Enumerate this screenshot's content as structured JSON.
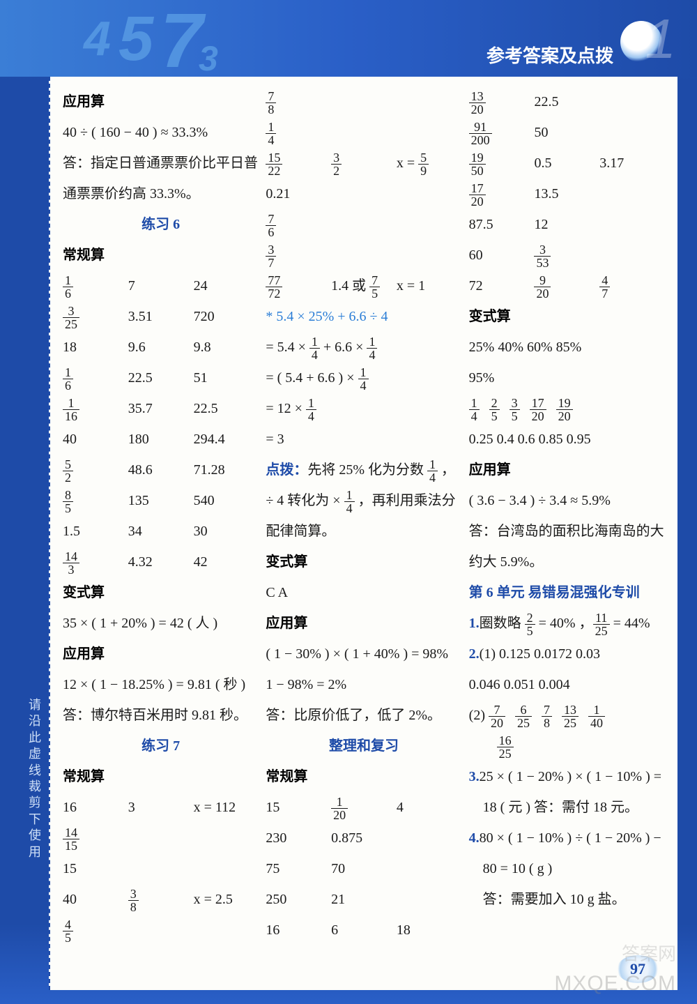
{
  "header": {
    "decor_nums": [
      "4",
      "5",
      "7",
      "3"
    ],
    "title": "参考答案及点拨",
    "corner": "1"
  },
  "sidebar": "请沿此虚线裁剪下使用",
  "page_number": "97",
  "watermark_cn": "答案网",
  "watermark_en": "MXQE.COM",
  "col1": {
    "s1_title": "应用算",
    "s1_l1": "40 ÷ ( 160 − 40 ) ≈ 33.3%",
    "s1_l2": "答：指定日普通票票价比平日普",
    "s1_l3": "通票票价约高 33.3%。",
    "ex6": "练习 6",
    "s2_title": "常规算",
    "t1": [
      [
        "1/6",
        "7",
        "24"
      ],
      [
        "3/25",
        "3.51",
        "720"
      ],
      [
        "18",
        "9.6",
        "9.8"
      ],
      [
        "1/6",
        "22.5",
        "51"
      ],
      [
        "1/16",
        "35.7",
        "22.5"
      ],
      [
        "40",
        "180",
        "294.4"
      ],
      [
        "5/2",
        "48.6",
        "71.28"
      ],
      [
        "8/5",
        "135",
        "540"
      ],
      [
        "1.5",
        "34",
        "30"
      ],
      [
        "14/3",
        "4.32",
        "42"
      ]
    ],
    "s3_title": "变式算",
    "s3_l1": "35 × ( 1 + 20% ) = 42 ( 人 )",
    "s4_title": "应用算",
    "s4_l1": "12 × ( 1 − 18.25% ) = 9.81 ( 秒 )",
    "s4_l2": "答：博尔特百米用时 9.81 秒。",
    "ex7": "练习 7",
    "s5_title": "常规算",
    "t2": [
      [
        "16",
        "3",
        "x = 112"
      ],
      [
        "14/15",
        "",
        ""
      ],
      [
        "15",
        "",
        ""
      ],
      [
        "40",
        "3/8",
        "x = 2.5"
      ],
      [
        "4/5",
        "",
        ""
      ]
    ]
  },
  "col2": {
    "lines1": [
      "7/8",
      "1/4"
    ],
    "row1": [
      "15/22",
      "3/2",
      "x = 5/9"
    ],
    "lines2": [
      "0.21",
      "7/6",
      "3/7"
    ],
    "row2": [
      "77/72",
      "1.4 或 7/5",
      "x = 1"
    ],
    "star_title": "* 5.4 × 25% + 6.6 ÷ 4",
    "star_l1": "= 5.4 × 1/4 + 6.6 × 1/4",
    "star_l2": "= ( 5.4 + 6.6 ) × 1/4",
    "star_l3": "= 12 × 1/4",
    "star_l4": "= 3",
    "tip_label": "点拨：",
    "tip_l1": "先将 25% 化为分数 1/4 ，",
    "tip_l2": "÷ 4 转化为 × 1/4 ，再利用乘法分",
    "tip_l3": "配律简算。",
    "s6_title": "变式算",
    "s6_l1": "C   A",
    "s7_title": "应用算",
    "s7_l1": "( 1 − 30% ) × ( 1 + 40% ) = 98%",
    "s7_l2": "1 − 98% = 2%",
    "s7_l3": "答：比原价低了，低了 2%。",
    "review": "整理和复习",
    "s8_title": "常规算",
    "t3": [
      [
        "15",
        "1/20",
        "4"
      ],
      [
        "230",
        "0.875",
        ""
      ],
      [
        "75",
        "70",
        ""
      ],
      [
        "250",
        "21",
        ""
      ],
      [
        "16",
        "6",
        "18"
      ]
    ]
  },
  "col3": {
    "t4": [
      [
        "13/20",
        "22.5",
        ""
      ],
      [
        "91/200",
        "50",
        ""
      ],
      [
        "19/50",
        "0.5",
        "3.17"
      ],
      [
        "17/20",
        "13.5",
        ""
      ],
      [
        "87.5",
        "12",
        ""
      ],
      [
        "60",
        "3/53",
        ""
      ],
      [
        "72",
        "9/20",
        "4/7"
      ]
    ],
    "s9_title": "变式算",
    "s9_l1": "25%   40%   60%   85%",
    "s9_l2": "95%",
    "s9_fracs": [
      "1/4",
      "2/5",
      "3/5",
      "17/20",
      "19/20"
    ],
    "s9_l4": "0.25   0.4   0.6   0.85   0.95",
    "s10_title": "应用算",
    "s10_l1": "( 3.6 − 3.4 ) ÷ 3.4 ≈ 5.9%",
    "s10_l2": "答：台湾岛的面积比海南岛的大",
    "s10_l3": "约大 5.9%。",
    "unit6": "第 6 单元   易错易混强化专训",
    "q1a": "1.",
    "q1b": "圈数略   2/5 = 40% ，11/25 = 44%",
    "q2a": "2.",
    "q2_l1": "(1) 0.125   0.0172   0.03",
    "q2_l2": "    0.046   0.051   0.004",
    "q2_l3a": "(2)",
    "q2_fracs": [
      "7/20",
      "6/25",
      "7/8",
      "13/25",
      "1/40"
    ],
    "q2_frac_last": "16/25",
    "q3a": "3.",
    "q3_l1": "25 × ( 1 − 20% ) × ( 1 − 10% ) =",
    "q3_l2": "18 ( 元 )   答：需付 18 元。",
    "q4a": "4.",
    "q4_l1": "80 × ( 1 − 10% ) ÷ ( 1 − 20% ) −",
    "q4_l2": "80 = 10 ( g )",
    "q4_l3": "答：需要加入 10 g 盐。"
  }
}
